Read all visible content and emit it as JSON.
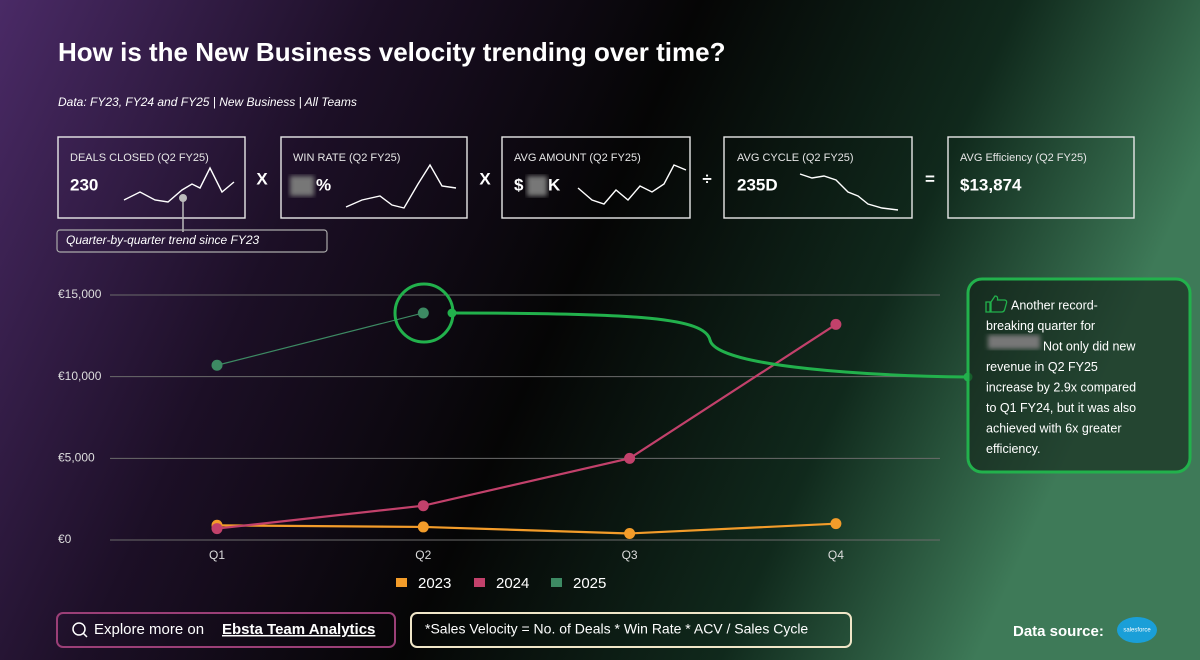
{
  "header": {
    "title": "How is the New Business velocity trending over time?",
    "subtitle": "Data: FY23, FY24 and FY25 | New Business | All Teams"
  },
  "kpis": [
    {
      "label": "DEALS CLOSED (Q2 FY25)",
      "value": "230"
    },
    {
      "label": "WIN RATE (Q2 FY25)",
      "value": "%"
    },
    {
      "label": "AVG AMOUNT (Q2 FY25)",
      "value_prefix": "$",
      "value": "K"
    },
    {
      "label": "AVG CYCLE (Q2 FY25)",
      "value": "235D"
    },
    {
      "label": "AVG Efficiency (Q2 FY25)",
      "value": "$13,874"
    }
  ],
  "operators": [
    "X",
    "X",
    "÷",
    "="
  ],
  "trend_note": "Quarter-by-quarter trend since FY23",
  "callout": {
    "lines": [
      "Another record-",
      "breaking quarter for",
      "Not only did new",
      "revenue in Q2 FY25",
      "increase by 2.9x compared",
      "to Q1 FY24, but it was also",
      "achieved with 6x greater",
      "efficiency."
    ]
  },
  "footer": {
    "explore_prefix": "Explore more on",
    "explore_link": "Ebsta Team Analytics",
    "formula": "*Sales Velocity = No. of Deals * Win Rate * ACV / Sales Cycle",
    "source": "Data source:",
    "source_logo": "salesforce"
  },
  "chart_data": {
    "type": "line",
    "categories": [
      "Q1",
      "Q2",
      "Q3",
      "Q4"
    ],
    "series": [
      {
        "name": "2023",
        "color": "#f39c2a",
        "values": [
          900,
          800,
          400,
          1000
        ]
      },
      {
        "name": "2024",
        "color": "#c2416b",
        "values": [
          700,
          2100,
          5000,
          13200
        ]
      },
      {
        "name": "2025",
        "color": "#3d8a63",
        "values": [
          10700,
          13900,
          null,
          null
        ]
      }
    ],
    "ylim": [
      0,
      15000
    ],
    "yticks": [
      {
        "value": 0,
        "label": "€0"
      },
      {
        "value": 5000,
        "label": "€5,000"
      },
      {
        "value": 10000,
        "label": "€10,000"
      },
      {
        "value": 15000,
        "label": "€15,000"
      }
    ],
    "grid": true,
    "legend": "bottom"
  }
}
